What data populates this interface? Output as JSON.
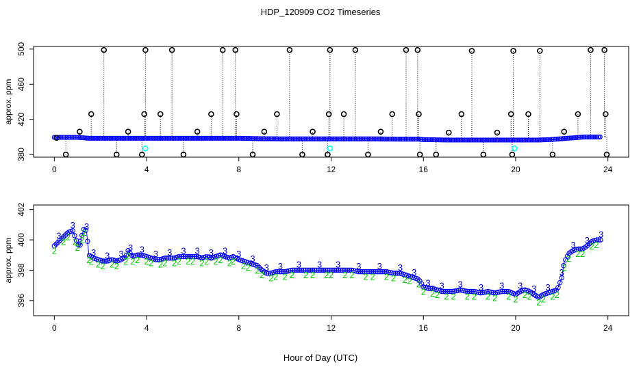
{
  "figure": {
    "title": "HDP_120909  CO2 Timeseries",
    "xlabel": "Hour of Day (UTC)"
  },
  "colors": {
    "raw": "#000000",
    "flag0": "#0000ff",
    "flag1": "#00ffff",
    "flag2": "#00cc00",
    "flag3": "#0000cc"
  },
  "chart_data": [
    {
      "type": "scatter",
      "ylabel": "approx. ppm",
      "xlim": [
        -0.9,
        24.9
      ],
      "ylim": [
        377,
        503
      ],
      "x_ticks": [
        0,
        4,
        8,
        12,
        16,
        20,
        24
      ],
      "y_ticks": [
        380,
        420,
        460,
        500
      ],
      "baseline": {
        "name": "co2",
        "x": [
          0.0,
          1.0,
          1.5,
          2.0,
          3.0,
          4.0,
          5.0,
          6.0,
          7.0,
          7.8,
          8.0,
          9.0,
          10.0,
          11.0,
          12.0,
          13.0,
          14.0,
          15.0,
          15.8,
          16.0,
          17.0,
          18.0,
          19.0,
          20.0,
          21.0,
          21.5,
          22.0,
          22.5,
          23.0,
          23.7
        ],
        "y": [
          399.5,
          399.5,
          398.5,
          398.5,
          398.5,
          398.5,
          398.5,
          398.5,
          398.5,
          398.5,
          398.5,
          398.0,
          397.8,
          397.8,
          397.8,
          397.8,
          397.8,
          397.5,
          397.5,
          397.0,
          396.5,
          396.5,
          396.5,
          396.5,
          396.5,
          397.0,
          398.0,
          399.0,
          400.0,
          400.0
        ]
      },
      "spikes": {
        "name": "spikes",
        "x": [
          0.1,
          0.5,
          1.1,
          1.6,
          2.15,
          2.7,
          3.2,
          3.8,
          3.9,
          3.95,
          4.6,
          5.1,
          5.6,
          6.2,
          6.8,
          7.3,
          7.85,
          7.9,
          8.6,
          9.1,
          9.65,
          10.2,
          10.75,
          11.2,
          11.85,
          11.9,
          11.95,
          12.55,
          13.05,
          13.6,
          14.15,
          14.65,
          15.25,
          15.75,
          15.8,
          15.85,
          16.55,
          17.1,
          17.65,
          18.1,
          18.6,
          19.2,
          19.85,
          19.8,
          19.9,
          20.55,
          21.05,
          21.6,
          22.1,
          22.7,
          23.25,
          23.85,
          23.9,
          23.95
        ],
        "y": [
          399,
          380,
          406,
          426,
          499,
          380,
          406,
          380,
          426,
          499,
          426,
          499,
          380,
          406,
          426,
          499,
          499,
          426,
          380,
          406,
          426,
          499,
          380,
          406,
          380,
          426,
          499,
          426,
          499,
          380,
          406,
          426,
          499,
          499,
          426,
          380,
          380,
          405,
          426,
          498,
          380,
          405,
          380,
          426,
          498,
          426,
          498,
          380,
          406,
          426,
          499,
          499,
          426,
          380
        ]
      },
      "flagged": {
        "name": "flagged",
        "x": [
          3.95,
          11.95,
          19.95
        ],
        "y": [
          387,
          387,
          387
        ]
      }
    },
    {
      "type": "scatter",
      "ylabel": "approx. ppm",
      "xlim": [
        -0.9,
        24.9
      ],
      "ylim": [
        395.0,
        402.3
      ],
      "x_ticks": [
        0,
        4,
        8,
        12,
        16,
        20,
        24
      ],
      "y_ticks": [
        396,
        398,
        400,
        402
      ],
      "series": [
        {
          "name": "co2",
          "x": [
            0.0,
            0.2,
            0.4,
            0.6,
            0.8,
            0.9,
            1.0,
            1.1,
            1.2,
            1.3,
            1.4,
            1.5,
            1.6,
            1.7,
            1.9,
            2.1,
            2.3,
            2.5,
            2.7,
            2.9,
            3.1,
            3.2,
            3.3,
            3.4,
            3.6,
            3.8,
            4.0,
            4.2,
            4.4,
            4.6,
            4.8,
            5.0,
            5.2,
            5.4,
            5.6,
            5.8,
            6.0,
            6.2,
            6.4,
            6.6,
            6.8,
            7.0,
            7.2,
            7.4,
            7.6,
            7.75,
            8.0,
            8.2,
            8.4,
            8.6,
            8.8,
            9.0,
            9.2,
            9.4,
            9.6,
            9.8,
            10.0,
            10.3,
            10.6,
            10.9,
            11.2,
            11.5,
            11.8,
            12.0,
            12.3,
            12.6,
            12.9,
            13.2,
            13.5,
            13.8,
            14.1,
            14.4,
            14.7,
            15.0,
            15.2,
            15.4,
            15.6,
            15.8,
            16.0,
            16.2,
            16.4,
            16.6,
            16.8,
            17.0,
            17.3,
            17.6,
            17.9,
            18.2,
            18.5,
            18.8,
            19.1,
            19.4,
            19.7,
            20.0,
            20.2,
            20.4,
            20.6,
            20.8,
            21.0,
            21.2,
            21.4,
            21.6,
            21.8,
            22.0,
            22.1,
            22.3,
            22.5,
            22.7,
            22.9,
            23.1,
            23.3,
            23.5,
            23.7
          ],
          "y": [
            399.6,
            399.9,
            400.2,
            400.5,
            400.6,
            400.2,
            399.8,
            399.5,
            400.3,
            400.8,
            400.5,
            399.0,
            398.9,
            398.8,
            398.7,
            398.6,
            398.6,
            398.7,
            398.6,
            398.7,
            398.9,
            399.3,
            399.1,
            398.9,
            399.0,
            399.0,
            398.9,
            398.8,
            398.7,
            398.7,
            398.8,
            398.8,
            398.8,
            398.9,
            398.9,
            398.9,
            398.9,
            398.9,
            398.8,
            398.9,
            398.8,
            398.9,
            399.0,
            398.9,
            398.8,
            398.9,
            398.7,
            398.6,
            398.5,
            398.4,
            398.3,
            398.0,
            397.8,
            397.8,
            397.9,
            397.9,
            397.9,
            398.0,
            398.0,
            398.0,
            398.0,
            398.0,
            398.0,
            398.0,
            398.0,
            398.0,
            398.0,
            397.9,
            397.9,
            397.9,
            397.9,
            397.9,
            397.8,
            397.8,
            397.7,
            397.6,
            397.5,
            397.4,
            396.9,
            396.8,
            396.8,
            396.7,
            396.6,
            396.6,
            396.6,
            396.7,
            396.6,
            396.6,
            396.5,
            396.6,
            396.5,
            396.6,
            396.6,
            396.4,
            396.6,
            396.7,
            396.6,
            396.4,
            396.2,
            396.4,
            396.5,
            396.6,
            396.7,
            397.5,
            398.5,
            399.1,
            399.3,
            399.4,
            399.4,
            399.6,
            399.9,
            400.0,
            400.0
          ]
        }
      ]
    }
  ]
}
